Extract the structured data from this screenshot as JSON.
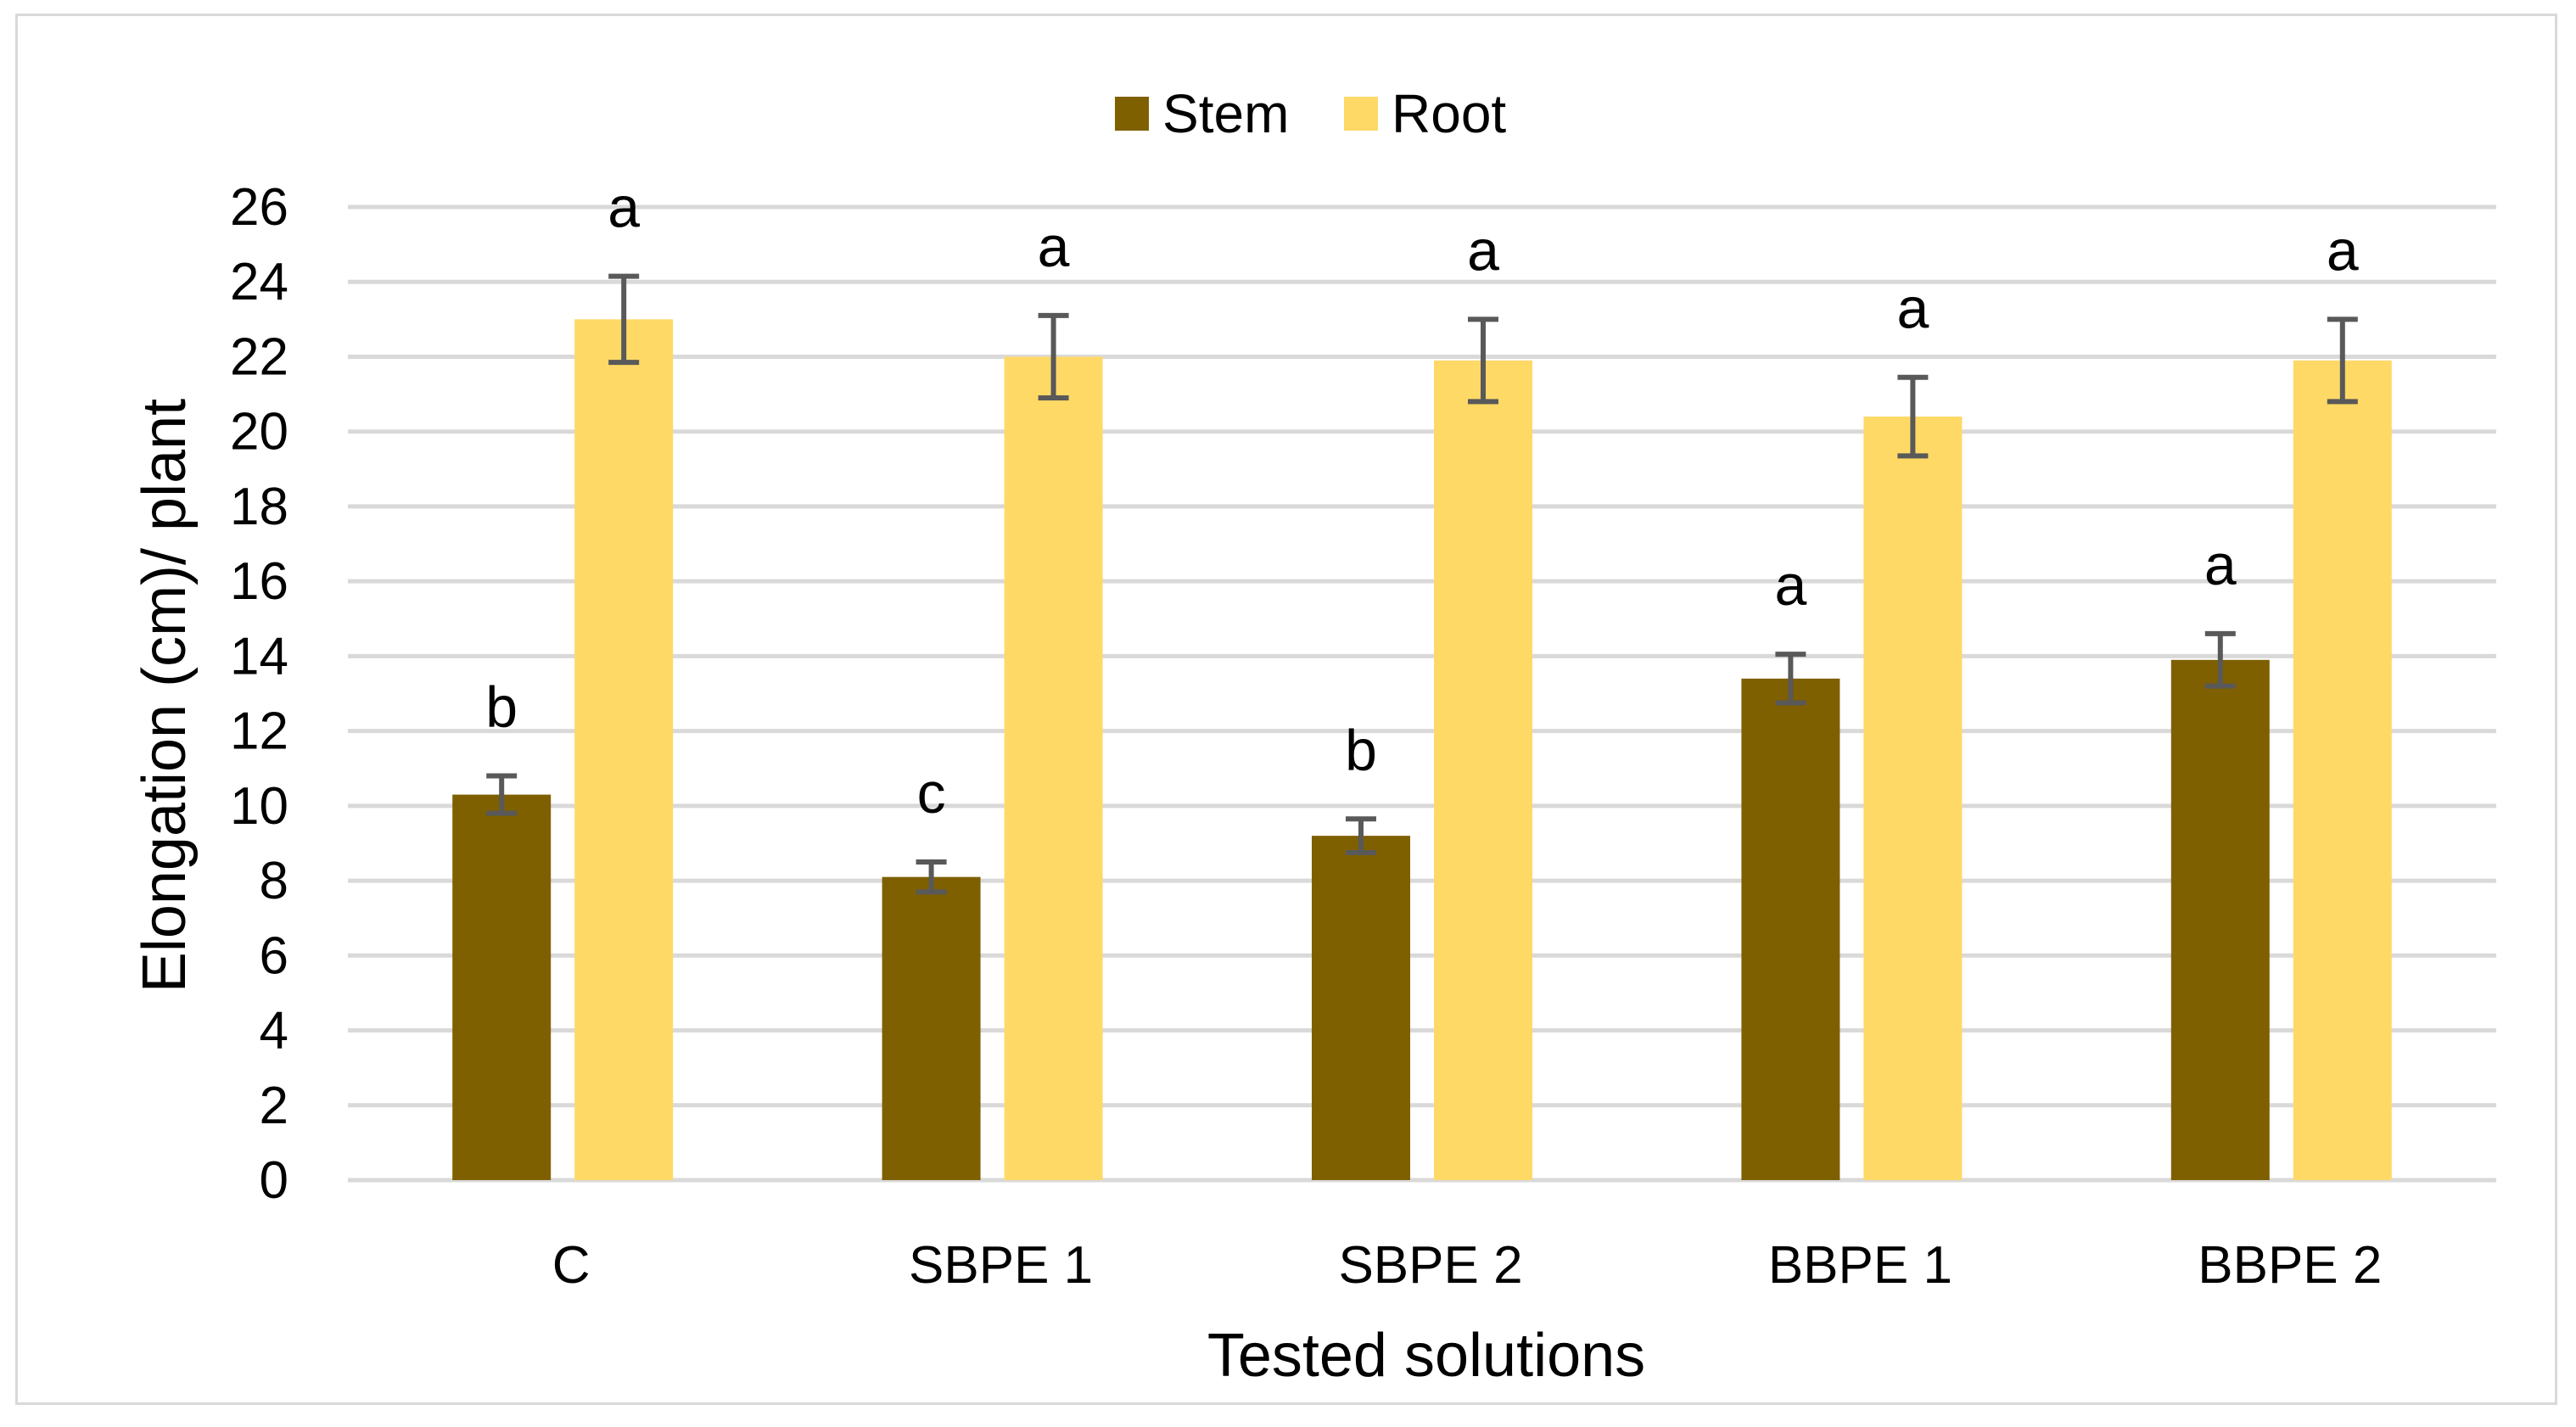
{
  "chart_data": {
    "type": "bar",
    "title": "",
    "xlabel": "Tested solutions",
    "ylabel": "Elongation (cm)/ plant",
    "ylim": [
      0,
      26
    ],
    "yticks": [
      0,
      2,
      4,
      6,
      8,
      10,
      12,
      14,
      16,
      18,
      20,
      22,
      24,
      26
    ],
    "grid": true,
    "legend_position": "top-center",
    "categories": [
      "C",
      "SBPE 1",
      "SBPE 2",
      "BBPE 1",
      "BBPE 2"
    ],
    "series": [
      {
        "name": "Stem",
        "color": "#7f6000",
        "values": [
          10.3,
          8.1,
          9.2,
          13.4,
          13.9
        ],
        "errors": [
          0.5,
          0.4,
          0.45,
          0.65,
          0.7
        ],
        "labels": [
          "b",
          "c",
          "b",
          "a",
          "a"
        ]
      },
      {
        "name": "Root",
        "color": "#ffd966",
        "values": [
          23.0,
          22.0,
          21.9,
          20.4,
          21.9
        ],
        "errors": [
          1.15,
          1.1,
          1.1,
          1.05,
          1.1
        ],
        "labels": [
          "a",
          "a",
          "a",
          "a",
          "a"
        ]
      }
    ],
    "error_bar_color": "#595959",
    "grid_color": "#d9d9d9"
  }
}
